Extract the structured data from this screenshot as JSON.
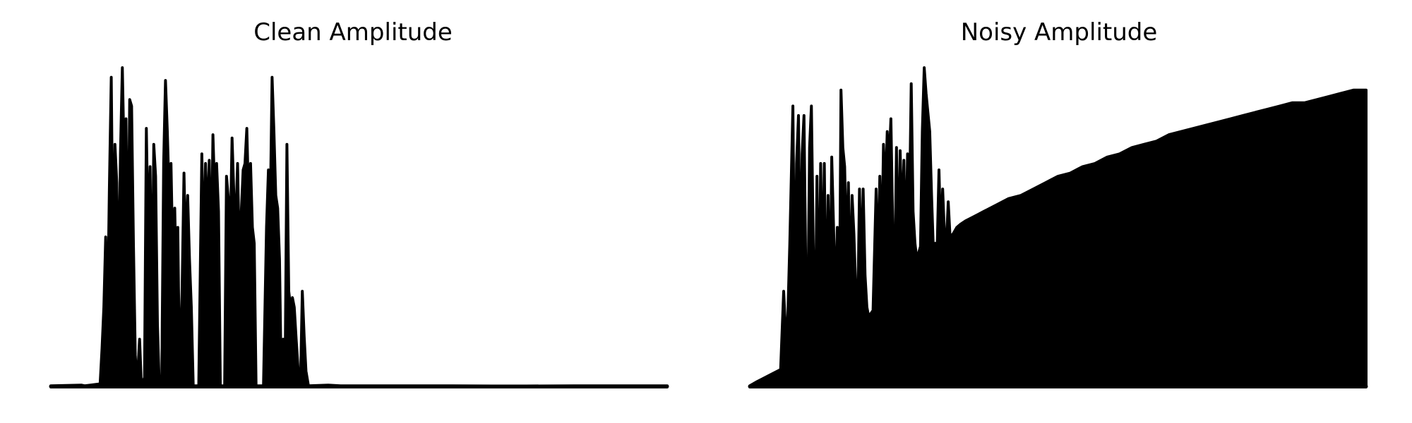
{
  "colors": {
    "line": "#000000",
    "background": "#ffffff"
  },
  "chart_data": [
    {
      "type": "line",
      "title": "Clean Amplitude",
      "xlabel": "",
      "ylabel": "",
      "axes_visible": false,
      "grid": false,
      "xlim": [
        0,
        1
      ],
      "ylim": [
        0,
        1
      ],
      "series": [
        {
          "values": [
            [
              0.0,
              0.004
            ],
            [
              0.05,
              0.006
            ],
            [
              0.055,
              0.004
            ],
            [
              0.08,
              0.01
            ],
            [
              0.083,
              0.12
            ],
            [
              0.086,
              0.25
            ],
            [
              0.089,
              0.47
            ],
            [
              0.092,
              0.2
            ],
            [
              0.095,
              0.62
            ],
            [
              0.098,
              0.97
            ],
            [
              0.101,
              0.35
            ],
            [
              0.104,
              0.76
            ],
            [
              0.107,
              0.64
            ],
            [
              0.11,
              0.25
            ],
            [
              0.113,
              0.73
            ],
            [
              0.116,
              1.0
            ],
            [
              0.119,
              0.7
            ],
            [
              0.122,
              0.84
            ],
            [
              0.125,
              0.3
            ],
            [
              0.128,
              0.9
            ],
            [
              0.131,
              0.88
            ],
            [
              0.134,
              0.45
            ],
            [
              0.137,
              0.1
            ],
            [
              0.14,
              0.004
            ],
            [
              0.144,
              0.15
            ],
            [
              0.147,
              0.004
            ],
            [
              0.152,
              0.03
            ],
            [
              0.155,
              0.81
            ],
            [
              0.158,
              0.45
            ],
            [
              0.161,
              0.69
            ],
            [
              0.164,
              0.2
            ],
            [
              0.167,
              0.76
            ],
            [
              0.17,
              0.66
            ],
            [
              0.173,
              0.2
            ],
            [
              0.176,
              0.004
            ],
            [
              0.18,
              0.02
            ],
            [
              0.183,
              0.7
            ],
            [
              0.186,
              0.96
            ],
            [
              0.189,
              0.8
            ],
            [
              0.192,
              0.6
            ],
            [
              0.195,
              0.7
            ],
            [
              0.198,
              0.38
            ],
            [
              0.201,
              0.56
            ],
            [
              0.204,
              0.28
            ],
            [
              0.206,
              0.5
            ],
            [
              0.209,
              0.02
            ],
            [
              0.213,
              0.3
            ],
            [
              0.216,
              0.67
            ],
            [
              0.219,
              0.4
            ],
            [
              0.222,
              0.6
            ],
            [
              0.225,
              0.4
            ],
            [
              0.228,
              0.25
            ],
            [
              0.231,
              0.004
            ],
            [
              0.24,
              0.004
            ],
            [
              0.245,
              0.73
            ],
            [
              0.248,
              0.4
            ],
            [
              0.251,
              0.7
            ],
            [
              0.254,
              0.5
            ],
            [
              0.257,
              0.71
            ],
            [
              0.26,
              0.35
            ],
            [
              0.263,
              0.79
            ],
            [
              0.266,
              0.6
            ],
            [
              0.269,
              0.7
            ],
            [
              0.272,
              0.55
            ],
            [
              0.275,
              0.004
            ],
            [
              0.282,
              0.004
            ],
            [
              0.285,
              0.66
            ],
            [
              0.288,
              0.59
            ],
            [
              0.291,
              0.45
            ],
            [
              0.294,
              0.78
            ],
            [
              0.297,
              0.6
            ],
            [
              0.3,
              0.5
            ],
            [
              0.303,
              0.7
            ],
            [
              0.306,
              0.4
            ],
            [
              0.309,
              0.55
            ],
            [
              0.312,
              0.68
            ],
            [
              0.315,
              0.7
            ],
            [
              0.318,
              0.81
            ],
            [
              0.321,
              0.58
            ],
            [
              0.324,
              0.7
            ],
            [
              0.327,
              0.5
            ],
            [
              0.33,
              0.45
            ],
            [
              0.333,
              0.004
            ],
            [
              0.345,
              0.004
            ],
            [
              0.35,
              0.5
            ],
            [
              0.353,
              0.68
            ],
            [
              0.356,
              0.55
            ],
            [
              0.359,
              0.97
            ],
            [
              0.362,
              0.8
            ],
            [
              0.365,
              0.6
            ],
            [
              0.368,
              0.56
            ],
            [
              0.371,
              0.4
            ],
            [
              0.374,
              0.004
            ],
            [
              0.377,
              0.15
            ],
            [
              0.38,
              0.004
            ],
            [
              0.383,
              0.76
            ],
            [
              0.386,
              0.3
            ],
            [
              0.389,
              0.25
            ],
            [
              0.392,
              0.28
            ],
            [
              0.395,
              0.25
            ],
            [
              0.398,
              0.15
            ],
            [
              0.401,
              0.06
            ],
            [
              0.405,
              0.004
            ],
            [
              0.408,
              0.3
            ],
            [
              0.411,
              0.16
            ],
            [
              0.414,
              0.05
            ],
            [
              0.418,
              0.004
            ],
            [
              0.45,
              0.006
            ],
            [
              0.47,
              0.004
            ],
            [
              0.55,
              0.004
            ],
            [
              0.65,
              0.004
            ],
            [
              0.75,
              0.003
            ],
            [
              0.85,
              0.004
            ],
            [
              0.95,
              0.004
            ],
            [
              1.0,
              0.004
            ]
          ]
        }
      ]
    },
    {
      "type": "line",
      "title": "Noisy Amplitude",
      "xlabel": "",
      "ylabel": "",
      "axes_visible": false,
      "grid": false,
      "xlim": [
        0,
        1
      ],
      "ylim": [
        0,
        1
      ],
      "series": [
        {
          "values": [
            [
              0.0,
              0.004
            ],
            [
              0.01,
              0.015
            ],
            [
              0.02,
              0.025
            ],
            [
              0.03,
              0.035
            ],
            [
              0.04,
              0.045
            ],
            [
              0.05,
              0.055
            ],
            [
              0.055,
              0.3
            ],
            [
              0.06,
              0.1
            ],
            [
              0.065,
              0.45
            ],
            [
              0.07,
              0.88
            ],
            [
              0.073,
              0.2
            ],
            [
              0.076,
              0.7
            ],
            [
              0.079,
              0.85
            ],
            [
              0.082,
              0.3
            ],
            [
              0.085,
              0.73
            ],
            [
              0.088,
              0.85
            ],
            [
              0.091,
              0.35
            ],
            [
              0.094,
              0.2
            ],
            [
              0.097,
              0.75
            ],
            [
              0.1,
              0.88
            ],
            [
              0.103,
              0.45
            ],
            [
              0.106,
              0.1
            ],
            [
              0.109,
              0.66
            ],
            [
              0.112,
              0.15
            ],
            [
              0.115,
              0.7
            ],
            [
              0.118,
              0.3
            ],
            [
              0.121,
              0.7
            ],
            [
              0.124,
              0.15
            ],
            [
              0.127,
              0.6
            ],
            [
              0.13,
              0.2
            ],
            [
              0.133,
              0.72
            ],
            [
              0.136,
              0.5
            ],
            [
              0.139,
              0.25
            ],
            [
              0.142,
              0.5
            ],
            [
              0.145,
              0.1
            ],
            [
              0.148,
              0.93
            ],
            [
              0.151,
              0.75
            ],
            [
              0.154,
              0.69
            ],
            [
              0.157,
              0.4
            ],
            [
              0.16,
              0.64
            ],
            [
              0.163,
              0.25
            ],
            [
              0.166,
              0.6
            ],
            [
              0.169,
              0.48
            ],
            [
              0.172,
              0.3
            ],
            [
              0.175,
              0.2
            ],
            [
              0.178,
              0.62
            ],
            [
              0.181,
              0.35
            ],
            [
              0.184,
              0.62
            ],
            [
              0.187,
              0.35
            ],
            [
              0.19,
              0.25
            ],
            [
              0.193,
              0.22
            ],
            [
              0.2,
              0.24
            ],
            [
              0.205,
              0.62
            ],
            [
              0.208,
              0.35
            ],
            [
              0.211,
              0.66
            ],
            [
              0.214,
              0.4
            ],
            [
              0.217,
              0.76
            ],
            [
              0.22,
              0.6
            ],
            [
              0.223,
              0.8
            ],
            [
              0.226,
              0.7
            ],
            [
              0.229,
              0.84
            ],
            [
              0.232,
              0.5
            ],
            [
              0.235,
              0.3
            ],
            [
              0.238,
              0.75
            ],
            [
              0.241,
              0.35
            ],
            [
              0.244,
              0.74
            ],
            [
              0.247,
              0.5
            ],
            [
              0.25,
              0.71
            ],
            [
              0.253,
              0.4
            ],
            [
              0.256,
              0.73
            ],
            [
              0.259,
              0.55
            ],
            [
              0.262,
              0.95
            ],
            [
              0.265,
              0.55
            ],
            [
              0.268,
              0.45
            ],
            [
              0.271,
              0.4
            ],
            [
              0.274,
              0.42
            ],
            [
              0.277,
              0.44
            ],
            [
              0.28,
              0.8
            ],
            [
              0.283,
              1.0
            ],
            [
              0.286,
              0.92
            ],
            [
              0.289,
              0.86
            ],
            [
              0.292,
              0.8
            ],
            [
              0.295,
              0.6
            ],
            [
              0.298,
              0.42
            ],
            [
              0.301,
              0.45
            ],
            [
              0.304,
              0.43
            ],
            [
              0.307,
              0.68
            ],
            [
              0.31,
              0.45
            ],
            [
              0.313,
              0.62
            ],
            [
              0.316,
              0.47
            ],
            [
              0.319,
              0.45
            ],
            [
              0.322,
              0.58
            ],
            [
              0.325,
              0.47
            ],
            [
              0.33,
              0.48
            ],
            [
              0.336,
              0.5
            ],
            [
              0.342,
              0.51
            ],
            [
              0.35,
              0.52
            ],
            [
              0.36,
              0.53
            ],
            [
              0.37,
              0.54
            ],
            [
              0.38,
              0.55
            ],
            [
              0.4,
              0.57
            ],
            [
              0.42,
              0.59
            ],
            [
              0.44,
              0.6
            ],
            [
              0.46,
              0.62
            ],
            [
              0.48,
              0.64
            ],
            [
              0.5,
              0.66
            ],
            [
              0.52,
              0.67
            ],
            [
              0.54,
              0.69
            ],
            [
              0.56,
              0.7
            ],
            [
              0.58,
              0.72
            ],
            [
              0.6,
              0.73
            ],
            [
              0.62,
              0.75
            ],
            [
              0.64,
              0.76
            ],
            [
              0.66,
              0.77
            ],
            [
              0.68,
              0.79
            ],
            [
              0.7,
              0.8
            ],
            [
              0.72,
              0.81
            ],
            [
              0.74,
              0.82
            ],
            [
              0.76,
              0.83
            ],
            [
              0.78,
              0.84
            ],
            [
              0.8,
              0.85
            ],
            [
              0.82,
              0.86
            ],
            [
              0.84,
              0.87
            ],
            [
              0.86,
              0.88
            ],
            [
              0.88,
              0.89
            ],
            [
              0.9,
              0.89
            ],
            [
              0.92,
              0.9
            ],
            [
              0.94,
              0.91
            ],
            [
              0.96,
              0.92
            ],
            [
              0.98,
              0.93
            ],
            [
              1.0,
              0.93
            ]
          ]
        }
      ]
    }
  ]
}
